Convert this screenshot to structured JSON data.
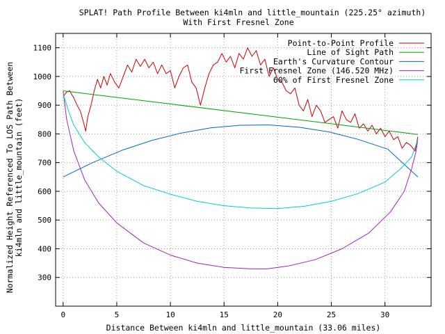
{
  "chart_data": {
    "type": "line",
    "title": "SPLAT! Path Profile Between ki4mln and little_mountain (225.25° azimuth)",
    "subtitle": "With First Fresnel Zone",
    "xlabel": "Distance Between ki4mln and little_mountain (33.06 miles)",
    "ylabel": [
      "Normalized Height Referenced To LOS Path Between",
      "ki4mln and little_mountain (feet)"
    ],
    "xlim": [
      -0.7,
      34.3
    ],
    "ylim": [
      200,
      1150
    ],
    "xticks": [
      0,
      5,
      10,
      15,
      20,
      25,
      30
    ],
    "yticks": [
      300,
      400,
      500,
      600,
      700,
      800,
      900,
      1000,
      1100
    ],
    "grid": true,
    "legend_position": "top-right",
    "series": [
      {
        "name": "Point-to-Point Profile",
        "color": "#cc0000",
        "x": [
          0,
          0.3,
          0.6,
          1.0,
          1.3,
          1.6,
          1.9,
          2.1,
          2.3,
          2.6,
          2.9,
          3.2,
          3.5,
          3.8,
          4.1,
          4.4,
          4.8,
          5.2,
          5.6,
          6.0,
          6.4,
          6.8,
          7.2,
          7.6,
          8.0,
          8.4,
          8.8,
          9.2,
          9.6,
          10.0,
          10.4,
          10.8,
          11.2,
          11.6,
          12.0,
          12.4,
          12.8,
          13.2,
          13.6,
          14.0,
          14.4,
          14.8,
          15.2,
          15.6,
          16.0,
          16.4,
          16.8,
          17.2,
          17.6,
          18.0,
          18.4,
          18.8,
          19.2,
          19.6,
          20.0,
          20.4,
          20.8,
          21.2,
          21.6,
          22.0,
          22.4,
          22.8,
          23.2,
          23.6,
          24.0,
          24.4,
          24.8,
          25.2,
          25.6,
          26.0,
          26.4,
          26.8,
          27.2,
          27.6,
          28.0,
          28.4,
          28.8,
          29.2,
          29.6,
          30.0,
          30.4,
          30.8,
          31.2,
          31.6,
          32.0,
          32.4,
          32.8,
          33.06
        ],
        "values": [
          930,
          945,
          950,
          925,
          900,
          880,
          840,
          810,
          860,
          900,
          950,
          990,
          960,
          1000,
          970,
          1010,
          980,
          960,
          1000,
          1040,
          1015,
          1060,
          1035,
          1060,
          1030,
          1050,
          1010,
          1040,
          1010,
          1020,
          960,
          1000,
          1030,
          1040,
          980,
          960,
          900,
          960,
          1010,
          1040,
          1050,
          1080,
          1050,
          1070,
          1030,
          1080,
          1060,
          1100,
          1070,
          1090,
          1040,
          1060,
          1000,
          1030,
          990,
          980,
          950,
          940,
          960,
          900,
          880,
          920,
          860,
          900,
          880,
          840,
          850,
          860,
          820,
          880,
          850,
          840,
          870,
          820,
          835,
          810,
          830,
          800,
          820,
          790,
          810,
          780,
          790,
          750,
          770,
          760,
          740,
          790
        ]
      },
      {
        "name": "Line of Sight Path",
        "color": "#00a000",
        "x": [
          0,
          33.06
        ],
        "values": [
          950,
          798
        ]
      },
      {
        "name": "Earth's Curvature Contour",
        "color": "#0066cc",
        "x": [
          0,
          2.75,
          5.5,
          8.25,
          11.0,
          13.75,
          16.5,
          19.25,
          22.0,
          24.75,
          27.5,
          30.25,
          33.06
        ],
        "values": [
          650,
          700,
          743,
          777,
          803,
          821,
          830,
          831,
          823,
          807,
          781,
          747,
          650
        ]
      },
      {
        "name": "First Fresnel Zone (146.520 MHz)",
        "color": "#a020c0",
        "x": [
          0,
          0.33,
          1.0,
          2.0,
          3.3,
          5.0,
          7.5,
          10.0,
          12.5,
          15.0,
          17.5,
          19.0,
          21.0,
          23.5,
          26.0,
          28.5,
          30.5,
          31.8,
          32.5,
          32.9,
          33.06
        ],
        "values": [
          950,
          850,
          740,
          640,
          560,
          490,
          420,
          378,
          350,
          335,
          330,
          330,
          340,
          362,
          400,
          455,
          528,
          600,
          680,
          740,
          780
        ]
      },
      {
        "name": "60% of First Fresnel Zone",
        "color": "#00d0d0",
        "x": [
          0,
          0.5,
          1.0,
          2.0,
          3.3,
          5.0,
          7.5,
          10.0,
          12.5,
          15.0,
          17.5,
          20.0,
          22.5,
          25.0,
          27.5,
          30.0,
          31.5,
          32.5,
          33.06
        ],
        "values": [
          940,
          880,
          830,
          770,
          720,
          670,
          620,
          590,
          565,
          550,
          542,
          540,
          548,
          565,
          592,
          632,
          680,
          720,
          780
        ]
      }
    ]
  }
}
